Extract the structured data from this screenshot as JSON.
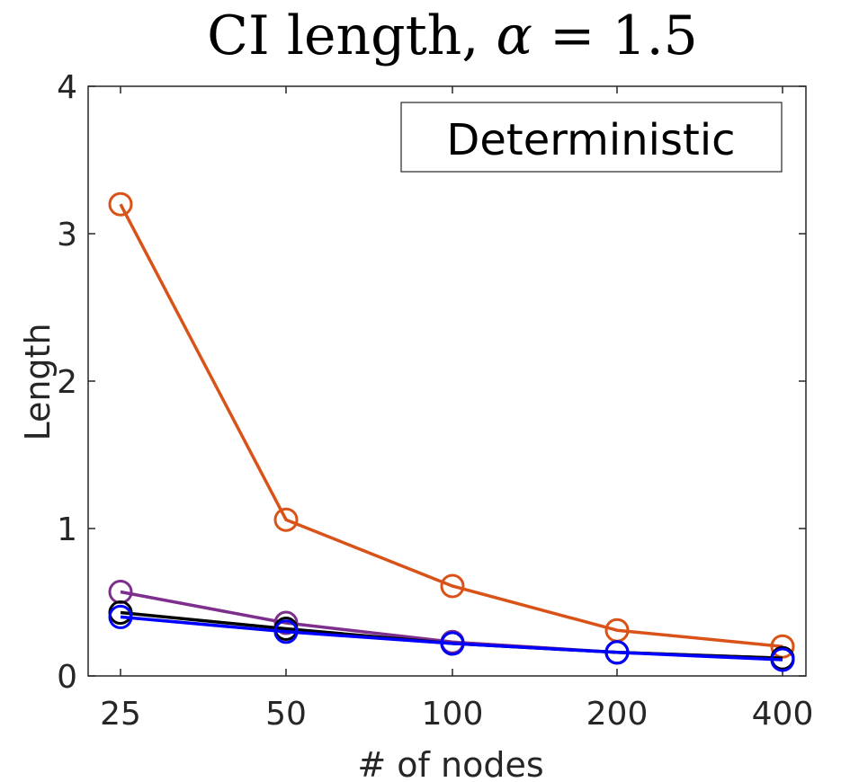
{
  "chart_data": {
    "type": "line",
    "title_text": "CI length, ",
    "title_alpha": "α",
    "title_value": " = 1.5",
    "xlabel": "# of nodes",
    "ylabel": "Length",
    "categories": [
      "25",
      "50",
      "100",
      "200",
      "400"
    ],
    "ylim": [
      0,
      4
    ],
    "yticks": [
      0,
      1,
      2,
      3,
      4
    ],
    "legend_box_text": "Deterministic",
    "series": [
      {
        "name": "orange",
        "color": "#d95319",
        "values": [
          3.2,
          1.06,
          0.61,
          0.31,
          0.2
        ]
      },
      {
        "name": "purple",
        "color": "#7e2f8e",
        "values": [
          0.57,
          0.36,
          0.23,
          0.16,
          0.12
        ]
      },
      {
        "name": "black",
        "color": "#000000",
        "values": [
          0.43,
          0.32,
          0.22,
          0.16,
          0.12
        ]
      },
      {
        "name": "blue",
        "color": "#0000ff",
        "values": [
          0.4,
          0.3,
          0.22,
          0.16,
          0.11
        ]
      }
    ]
  }
}
